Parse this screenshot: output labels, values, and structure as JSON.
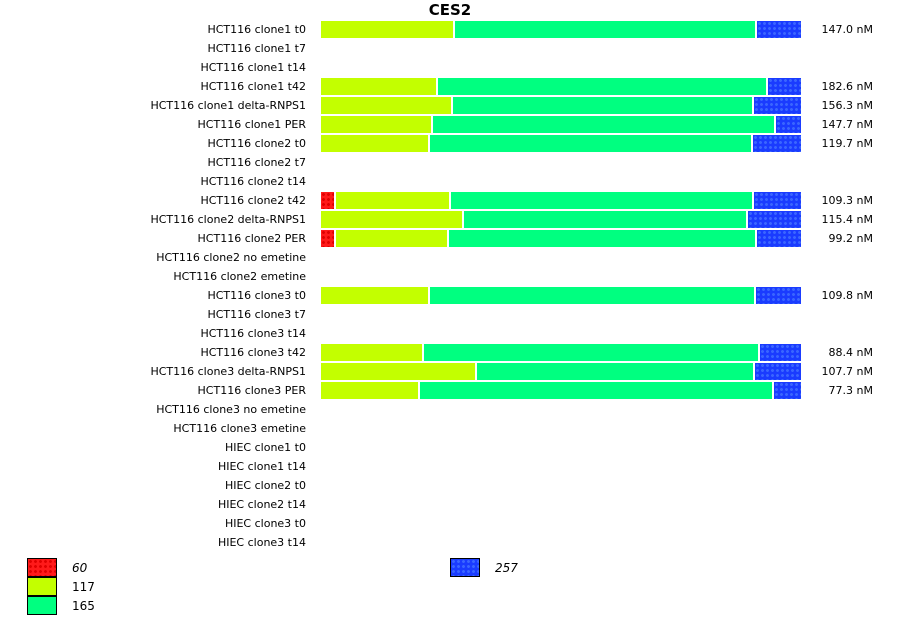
{
  "chart_data": {
    "type": "bar",
    "orientation": "horizontal",
    "stacked": true,
    "normalized": true,
    "title": "CES2",
    "value_unit": "nM",
    "segment_unit": "percent of row",
    "colors": {
      "60": "#ff1a1a",
      "117": "#c3ff00",
      "165": "#00ff80",
      "257": "#1a3cff"
    },
    "legend": [
      {
        "label": "60",
        "color": "#ff1a1a",
        "pattern": "dots",
        "italic": true
      },
      {
        "label": "117",
        "color": "#c3ff00",
        "pattern": "solid",
        "italic": false
      },
      {
        "label": "165",
        "color": "#00ff80",
        "pattern": "solid",
        "italic": false
      },
      {
        "label": "257",
        "color": "#1a3cff",
        "pattern": "dots",
        "italic": true
      }
    ],
    "series_order": [
      "60",
      "117",
      "165",
      "257"
    ],
    "categories": [
      {
        "label": "HCT116 clone1 t0",
        "value": "147.0 nM",
        "segments": {
          "60": 0,
          "117": 27.5,
          "165": 62.9,
          "257": 9.6
        }
      },
      {
        "label": "HCT116 clone1 t7",
        "value": "",
        "segments": null
      },
      {
        "label": "HCT116 clone1 t14",
        "value": "",
        "segments": null
      },
      {
        "label": "HCT116 clone1 t42",
        "value": "182.6 nM",
        "segments": {
          "60": 0,
          "117": 24.0,
          "165": 68.7,
          "257": 7.3
        }
      },
      {
        "label": "HCT116 clone1 delta-RNPS1",
        "value": "156.3 nM",
        "segments": {
          "60": 0,
          "117": 27.1,
          "165": 62.7,
          "257": 10.2
        }
      },
      {
        "label": "HCT116 clone1 PER",
        "value": "147.7 nM",
        "segments": {
          "60": 0,
          "117": 22.9,
          "165": 71.5,
          "257": 5.6
        }
      },
      {
        "label": "HCT116 clone2 t0",
        "value": "119.7 nM",
        "segments": {
          "60": 0,
          "117": 22.3,
          "165": 67.3,
          "257": 10.4
        }
      },
      {
        "label": "HCT116 clone2 t7",
        "value": "",
        "segments": null
      },
      {
        "label": "HCT116 clone2 t14",
        "value": "",
        "segments": null
      },
      {
        "label": "HCT116 clone2 t42",
        "value": "109.3 nM",
        "segments": {
          "60": 2.7,
          "117": 24.0,
          "165": 63.1,
          "257": 10.2
        }
      },
      {
        "label": "HCT116 clone2 delta-RNPS1",
        "value": "115.4 nM",
        "segments": {
          "60": 0,
          "117": 29.4,
          "165": 59.1,
          "257": 11.5
        }
      },
      {
        "label": "HCT116 clone2 PER",
        "value": "99.2 nM",
        "segments": {
          "60": 2.7,
          "117": 23.5,
          "165": 64.2,
          "257": 9.6
        }
      },
      {
        "label": "HCT116 clone2 no emetine",
        "value": "",
        "segments": null
      },
      {
        "label": "HCT116 clone2 emetine",
        "value": "",
        "segments": null
      },
      {
        "label": "HCT116 clone3 t0",
        "value": "109.8 nM",
        "segments": {
          "60": 0,
          "117": 22.3,
          "165": 67.9,
          "257": 9.8
        }
      },
      {
        "label": "HCT116 clone3 t7",
        "value": "",
        "segments": null
      },
      {
        "label": "HCT116 clone3 t14",
        "value": "",
        "segments": null
      },
      {
        "label": "HCT116 clone3 t42",
        "value": "88.4 nM",
        "segments": {
          "60": 0,
          "117": 21.0,
          "165": 70.0,
          "257": 9.0
        }
      },
      {
        "label": "HCT116 clone3 delta-RNPS1",
        "value": "107.7 nM",
        "segments": {
          "60": 0,
          "117": 32.1,
          "165": 57.9,
          "257": 10.0
        }
      },
      {
        "label": "HCT116 clone3 PER",
        "value": "77.3 nM",
        "segments": {
          "60": 0,
          "117": 20.2,
          "165": 73.8,
          "257": 6.0
        }
      },
      {
        "label": "HCT116 clone3 no emetine",
        "value": "",
        "segments": null
      },
      {
        "label": "HCT116 clone3 emetine",
        "value": "",
        "segments": null
      },
      {
        "label": "HIEC clone1 t0",
        "value": "",
        "segments": null
      },
      {
        "label": "HIEC clone1 t14",
        "value": "",
        "segments": null
      },
      {
        "label": "HIEC clone2 t0",
        "value": "",
        "segments": null
      },
      {
        "label": "HIEC clone2 t14",
        "value": "",
        "segments": null
      },
      {
        "label": "HIEC clone3 t0",
        "value": "",
        "segments": null
      },
      {
        "label": "HIEC clone3 t14",
        "value": "",
        "segments": null
      }
    ],
    "xlim": [
      0,
      100
    ],
    "grid": false,
    "legend_position": "bottom-left"
  }
}
